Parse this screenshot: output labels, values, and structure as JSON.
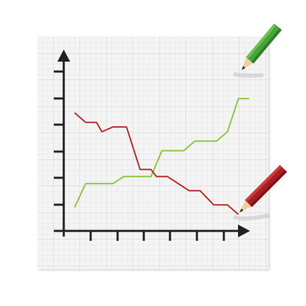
{
  "colors": {
    "background": "#ffffff",
    "paper": "#f3f3f3",
    "grid_minor": "#e2e2e2",
    "grid_major": "#cfcfcf",
    "axis": "#222222",
    "green_series": "#8cc63f",
    "red_series": "#b72a2a"
  },
  "icons": [
    "green-pencil-icon",
    "red-pencil-icon"
  ],
  "chart_data": {
    "type": "line",
    "title": "",
    "xlabel": "",
    "ylabel": "",
    "grid": true,
    "axis_ticks_labeled": false,
    "xlim": [
      0,
      11
    ],
    "ylim": [
      0,
      7.5
    ],
    "series": [
      {
        "color": "#8cc63f",
        "points": [
          [
            0.4,
            1
          ],
          [
            0.8,
            2
          ],
          [
            1.8,
            2
          ],
          [
            2.2,
            2.3
          ],
          [
            2.8,
            2.3
          ],
          [
            3.2,
            2.3
          ],
          [
            3.6,
            3.4
          ],
          [
            4.4,
            3.4
          ],
          [
            4.8,
            3.8
          ],
          [
            5.6,
            3.8
          ],
          [
            6.0,
            4.2
          ],
          [
            6.4,
            5.6
          ],
          [
            6.8,
            5.6
          ]
        ]
      },
      {
        "color": "#b72a2a",
        "points": [
          [
            0.4,
            5
          ],
          [
            0.8,
            4.6
          ],
          [
            1.2,
            4.6
          ],
          [
            1.4,
            4.2
          ],
          [
            1.8,
            4.4
          ],
          [
            2.3,
            4.4
          ],
          [
            2.8,
            2.6
          ],
          [
            3.2,
            2.6
          ],
          [
            3.4,
            2.3
          ],
          [
            3.8,
            2.3
          ],
          [
            4.6,
            1.7
          ],
          [
            5.0,
            1.7
          ],
          [
            5.5,
            1.1
          ],
          [
            6.0,
            1.1
          ],
          [
            6.4,
            0.7
          ]
        ]
      }
    ]
  }
}
